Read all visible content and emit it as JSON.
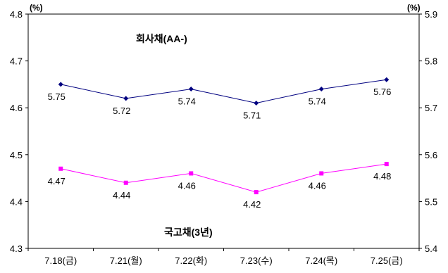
{
  "chart_data": {
    "type": "line",
    "categories": [
      "7.18(금)",
      "7.21(월)",
      "7.22(화)",
      "7.23(수)",
      "7.24(목)",
      "7.25(금)"
    ],
    "y_left": {
      "unit": "(%)",
      "min": 4.3,
      "max": 4.8,
      "step": 0.1,
      "ticks": [
        "4.3",
        "4.4",
        "4.5",
        "4.6",
        "4.7",
        "4.8"
      ]
    },
    "y_right": {
      "unit": "(%)",
      "min": 5.4,
      "max": 5.9,
      "step": 0.1,
      "ticks": [
        "5.4",
        "5.5",
        "5.6",
        "5.7",
        "5.8",
        "5.9"
      ]
    },
    "series": [
      {
        "name": "회사채(AA-)",
        "axis": "right",
        "color": "#000080",
        "marker": "diamond",
        "values": [
          5.75,
          5.72,
          5.74,
          5.71,
          5.74,
          5.76
        ],
        "labels": [
          "5.75",
          "5.72",
          "5.74",
          "5.71",
          "5.74",
          "5.76"
        ]
      },
      {
        "name": "국고채(3년)",
        "axis": "left",
        "color": "#ff00ff",
        "marker": "square",
        "values": [
          4.47,
          4.44,
          4.46,
          4.42,
          4.46,
          4.48
        ],
        "labels": [
          "4.47",
          "4.44",
          "4.46",
          "4.42",
          "4.46",
          "4.48"
        ]
      }
    ],
    "grid": false,
    "legend": "none"
  }
}
